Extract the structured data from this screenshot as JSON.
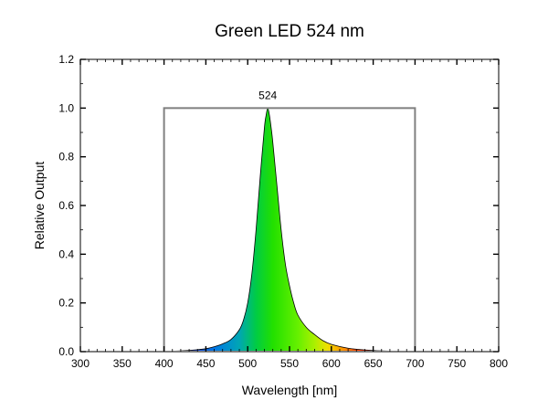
{
  "chart_data": {
    "type": "area",
    "title": "Green LED 524 nm",
    "xlabel": "Wavelength [nm]",
    "ylabel": "Relative Output",
    "xlim": [
      300,
      800
    ],
    "ylim": [
      0,
      1.2
    ],
    "x_ticks": [
      "300",
      "350",
      "400",
      "450",
      "500",
      "550",
      "600",
      "650",
      "700",
      "750",
      "800"
    ],
    "y_ticks": [
      "0.0",
      "0.2",
      "0.4",
      "0.6",
      "0.8",
      "1.0",
      "1.2"
    ],
    "grid": false,
    "legend": "none",
    "series": [
      {
        "x": [
          400,
          420,
          440,
          450,
          460,
          470,
          480,
          490,
          495,
          500,
          505,
          510,
          515,
          520,
          522,
          524,
          526,
          528,
          530,
          535,
          540,
          545,
          550,
          555,
          560,
          570,
          580,
          590,
          600,
          620,
          640,
          660,
          680,
          700
        ],
        "y": [
          0.0,
          0.003,
          0.008,
          0.012,
          0.02,
          0.032,
          0.05,
          0.09,
          0.13,
          0.2,
          0.32,
          0.5,
          0.72,
          0.92,
          0.97,
          1.0,
          0.97,
          0.92,
          0.86,
          0.68,
          0.5,
          0.36,
          0.27,
          0.2,
          0.15,
          0.1,
          0.07,
          0.045,
          0.03,
          0.014,
          0.007,
          0.003,
          0.001,
          0.0
        ]
      }
    ],
    "box": {
      "x": [
        400,
        700
      ],
      "y": [
        0,
        1.0
      ],
      "color": "#808080"
    },
    "annotation": {
      "text": "524",
      "x": 524,
      "y": 1.0
    }
  }
}
